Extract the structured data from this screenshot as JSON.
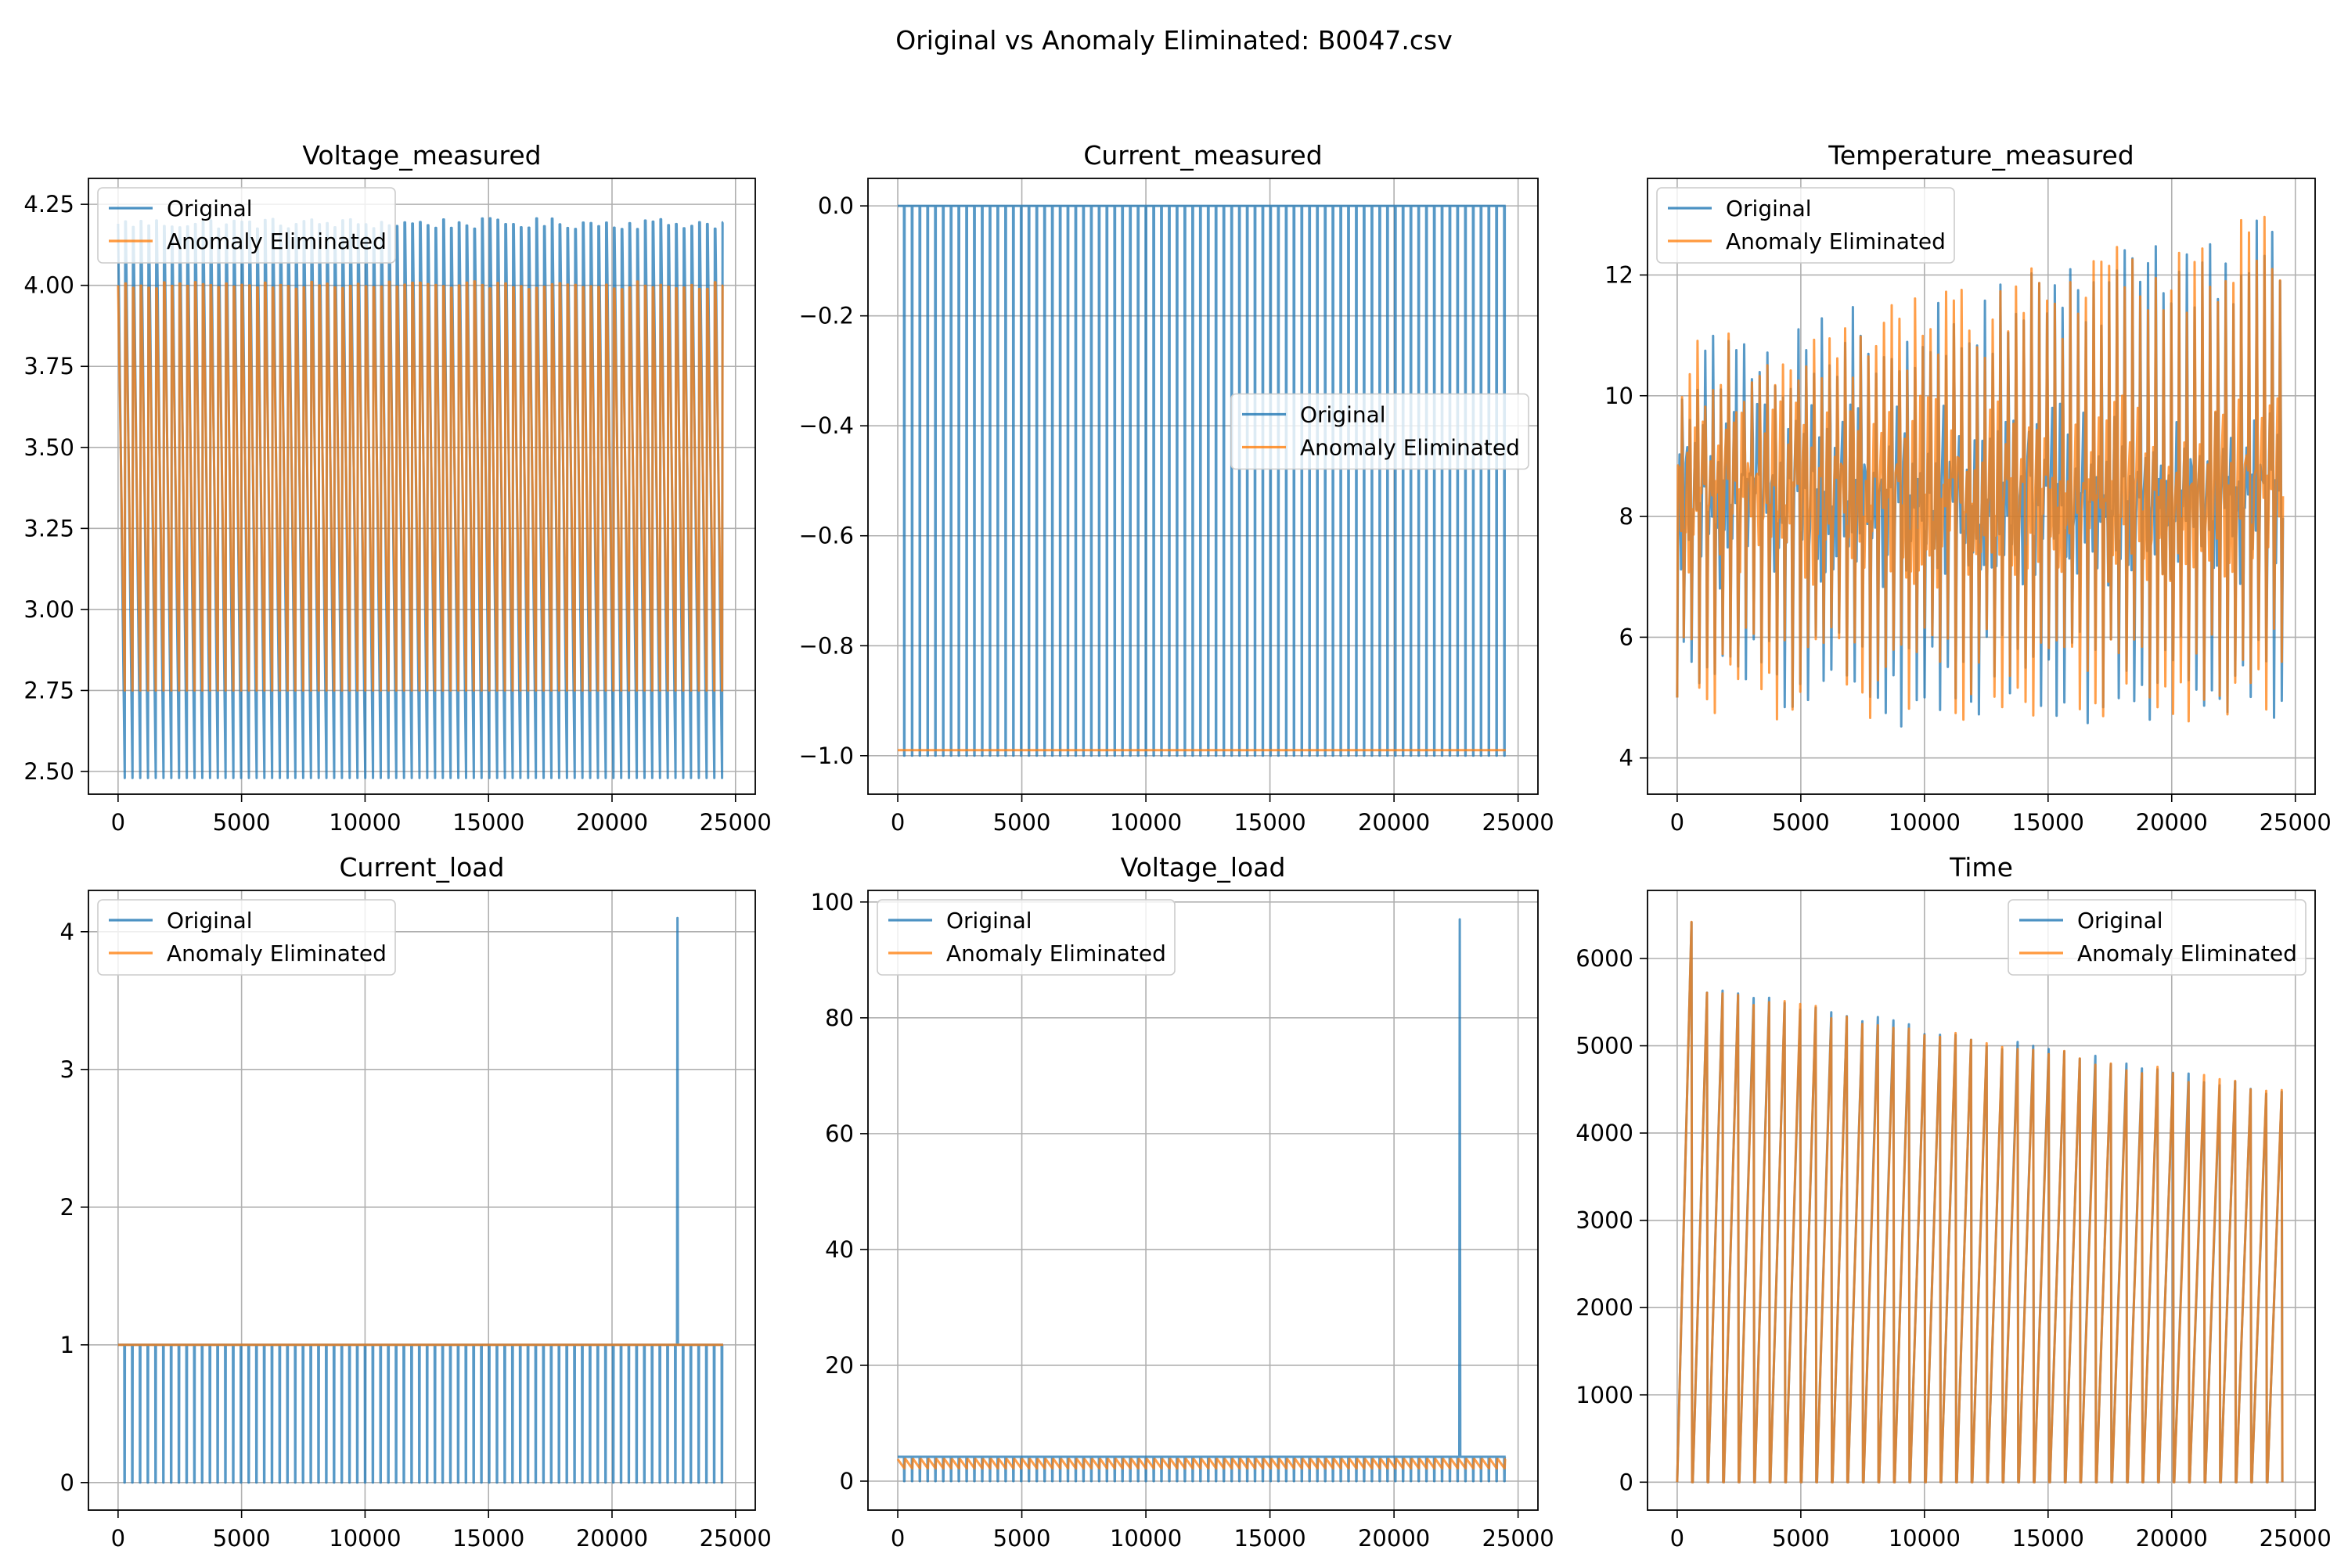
{
  "figure": {
    "suptitle": "Original vs Anomaly Eliminated: B0047.csv",
    "colors": {
      "original": "#1f77b4",
      "eliminated": "#ff7f0e",
      "grid": "#b0b0b0"
    },
    "legend_labels": [
      "Original",
      "Anomaly Eliminated"
    ]
  },
  "chart_data": [
    {
      "type": "line",
      "title": "Voltage_measured",
      "xlim": [
        -1200,
        25800
      ],
      "ylim": [
        2.43,
        4.33
      ],
      "xticks": [
        0,
        5000,
        10000,
        15000,
        20000,
        25000
      ],
      "yticks": [
        2.5,
        2.75,
        3.0,
        3.25,
        3.5,
        3.75,
        4.0,
        4.25
      ],
      "ytick_labels": [
        "2.50",
        "2.75",
        "3.00",
        "3.25",
        "3.50",
        "3.75",
        "4.00",
        "4.25"
      ],
      "legend": "top-left",
      "series": [
        {
          "name": "Original",
          "pattern": "sawtooth",
          "x_range": [
            0,
            24500
          ],
          "cycles": 78,
          "high": 4.19,
          "low": 2.48
        },
        {
          "name": "Anomaly Eliminated",
          "pattern": "sawtooth",
          "x_range": [
            0,
            24500
          ],
          "cycles": 78,
          "high": 4.0,
          "low": 2.75
        }
      ]
    },
    {
      "type": "line",
      "title": "Current_measured",
      "xlim": [
        -1200,
        25800
      ],
      "ylim": [
        -1.07,
        0.05
      ],
      "xticks": [
        0,
        5000,
        10000,
        15000,
        20000,
        25000
      ],
      "yticks": [
        -1.0,
        -0.8,
        -0.6,
        -0.4,
        -0.2,
        0.0
      ],
      "ytick_labels": [
        "−1.0",
        "−0.8",
        "−0.6",
        "−0.4",
        "−0.2",
        "0.0"
      ],
      "legend": "center-right",
      "series": [
        {
          "name": "Original",
          "pattern": "pulse",
          "x_range": [
            0,
            24500
          ],
          "cycles": 78,
          "high": 0.0,
          "low": -1.0
        },
        {
          "name": "Anomaly Eliminated",
          "pattern": "flat",
          "x_range": [
            0,
            24500
          ],
          "high": -0.99,
          "low": -1.0
        }
      ]
    },
    {
      "type": "line",
      "title": "Temperature_measured",
      "xlim": [
        -1200,
        25800
      ],
      "ylim": [
        3.4,
        13.6
      ],
      "xticks": [
        0,
        5000,
        10000,
        15000,
        20000,
        25000
      ],
      "yticks": [
        4,
        6,
        8,
        10,
        12
      ],
      "ytick_labels": [
        "4",
        "6",
        "8",
        "10",
        "12"
      ],
      "legend": "top-left",
      "series": [
        {
          "name": "Original",
          "pattern": "noisy",
          "x_range": [
            0,
            24500
          ],
          "cycles": 78,
          "high": 12.6,
          "low": 4.5
        },
        {
          "name": "Anomaly Eliminated",
          "pattern": "noisy",
          "x_range": [
            0,
            24500
          ],
          "cycles": 78,
          "high": 12.4,
          "low": 4.6
        }
      ]
    },
    {
      "type": "line",
      "title": "Current_load",
      "xlim": [
        -1200,
        25800
      ],
      "ylim": [
        -0.2,
        4.3
      ],
      "xticks": [
        0,
        5000,
        10000,
        15000,
        20000,
        25000
      ],
      "yticks": [
        0,
        1,
        2,
        3,
        4
      ],
      "ytick_labels": [
        "0",
        "1",
        "2",
        "3",
        "4"
      ],
      "legend": "top-left",
      "series": [
        {
          "name": "Original",
          "pattern": "pulse",
          "x_range": [
            0,
            24500
          ],
          "cycles": 78,
          "high": 1.0,
          "low": 0.0,
          "spike": {
            "x": 22650,
            "y": 4.1
          }
        },
        {
          "name": "Anomaly Eliminated",
          "pattern": "flat",
          "x_range": [
            0,
            24500
          ],
          "high": 1.0,
          "low": 1.0
        }
      ]
    },
    {
      "type": "line",
      "title": "Voltage_load",
      "xlim": [
        -1200,
        25800
      ],
      "ylim": [
        -5,
        102
      ],
      "xticks": [
        0,
        5000,
        10000,
        15000,
        20000,
        25000
      ],
      "yticks": [
        0,
        20,
        40,
        60,
        80,
        100
      ],
      "ytick_labels": [
        "0",
        "20",
        "40",
        "60",
        "80",
        "100"
      ],
      "legend": "top-left",
      "series": [
        {
          "name": "Original",
          "pattern": "pulse",
          "x_range": [
            0,
            24500
          ],
          "cycles": 78,
          "high": 4.2,
          "low": 0.0,
          "spike": {
            "x": 22650,
            "y": 97
          }
        },
        {
          "name": "Anomaly Eliminated",
          "pattern": "sawtooth",
          "x_range": [
            0,
            24500
          ],
          "cycles": 78,
          "high": 3.8,
          "low": 2.2
        }
      ]
    },
    {
      "type": "line",
      "title": "Time",
      "xlim": [
        -1200,
        25800
      ],
      "ylim": [
        -320,
        6780
      ],
      "xticks": [
        0,
        5000,
        10000,
        15000,
        20000,
        25000
      ],
      "yticks": [
        0,
        1000,
        2000,
        3000,
        4000,
        5000,
        6000
      ],
      "ytick_labels": [
        "0",
        "1000",
        "2000",
        "3000",
        "4000",
        "5000",
        "6000"
      ],
      "legend": "top-right",
      "series": [
        {
          "name": "Original",
          "pattern": "ramp",
          "x_range": [
            0,
            24500
          ],
          "cycles": 39,
          "first_peak": 6450,
          "start_peak": 5650,
          "end_peak": 4450
        },
        {
          "name": "Anomaly Eliminated",
          "pattern": "ramp",
          "x_range": [
            0,
            24500
          ],
          "cycles": 39,
          "first_peak": 6450,
          "start_peak": 5650,
          "end_peak": 4450
        }
      ]
    }
  ]
}
